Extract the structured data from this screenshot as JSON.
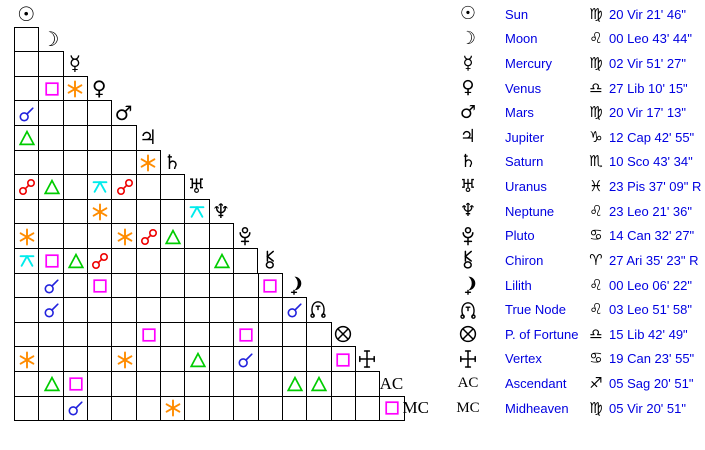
{
  "colors": {
    "text_blue": "#0000e0",
    "glyph_black": "#000000",
    "grid_line": "#000000",
    "aspect": {
      "conjunction": "#2222dd",
      "sextile": "#ff8c00",
      "square": "#ff00ff",
      "trine": "#00cc00",
      "opposition": "#ee0000",
      "quincunx": "#00ebeb"
    }
  },
  "planets": [
    {
      "id": "sun",
      "name": "Sun",
      "sign": "virgo",
      "position": "20 Vir 21' 46\""
    },
    {
      "id": "moon",
      "name": "Moon",
      "sign": "leo",
      "position": "00 Leo 43' 44\""
    },
    {
      "id": "mercury",
      "name": "Mercury",
      "sign": "virgo",
      "position": "02 Vir 51' 27\""
    },
    {
      "id": "venus",
      "name": "Venus",
      "sign": "libra",
      "position": "27 Lib 10' 15\""
    },
    {
      "id": "mars",
      "name": "Mars",
      "sign": "virgo",
      "position": "20 Vir 17' 13\""
    },
    {
      "id": "jupiter",
      "name": "Jupiter",
      "sign": "capricorn",
      "position": "12 Cap 42' 55\""
    },
    {
      "id": "saturn",
      "name": "Saturn",
      "sign": "scorpio",
      "position": "10 Sco 43' 34\""
    },
    {
      "id": "uranus",
      "name": "Uranus",
      "sign": "pisces",
      "position": "23 Pis 37' 09\" R"
    },
    {
      "id": "neptune",
      "name": "Neptune",
      "sign": "leo",
      "position": "23 Leo 21' 36\""
    },
    {
      "id": "pluto",
      "name": "Pluto",
      "sign": "cancer",
      "position": "14 Can 32' 27\""
    },
    {
      "id": "chiron",
      "name": "Chiron",
      "sign": "aries",
      "position": "27 Ari 35' 23\" R"
    },
    {
      "id": "lilith",
      "name": "Lilith",
      "sign": "leo",
      "position": "00 Leo 06' 22\""
    },
    {
      "id": "truenode",
      "name": "True Node",
      "sign": "leo",
      "position": "03 Leo 51' 58\""
    },
    {
      "id": "pof",
      "name": "P. of Fortune",
      "sign": "libra",
      "position": "15 Lib 42' 49\""
    },
    {
      "id": "vertex",
      "name": "Vertex",
      "sign": "cancer",
      "position": "19 Can 23' 55\""
    },
    {
      "id": "ac",
      "name": "Ascendant",
      "sign": "sagittarius",
      "position": "05 Sag 20' 51\"",
      "label": "AC"
    },
    {
      "id": "mc",
      "name": "Midheaven",
      "sign": "virgo",
      "position": "05 Vir 20' 51\"",
      "label": "MC"
    }
  ],
  "aspect_grid": {
    "rows": 17,
    "aspects": [
      {
        "row": 4,
        "col": 2,
        "type": "square"
      },
      {
        "row": 4,
        "col": 3,
        "type": "sextile"
      },
      {
        "row": 5,
        "col": 1,
        "type": "conjunction"
      },
      {
        "row": 6,
        "col": 1,
        "type": "trine"
      },
      {
        "row": 7,
        "col": 6,
        "type": "sextile"
      },
      {
        "row": 8,
        "col": 1,
        "type": "opposition"
      },
      {
        "row": 8,
        "col": 2,
        "type": "trine"
      },
      {
        "row": 8,
        "col": 4,
        "type": "quincunx"
      },
      {
        "row": 8,
        "col": 5,
        "type": "opposition"
      },
      {
        "row": 9,
        "col": 4,
        "type": "sextile"
      },
      {
        "row": 9,
        "col": 8,
        "type": "quincunx"
      },
      {
        "row": 10,
        "col": 1,
        "type": "sextile"
      },
      {
        "row": 10,
        "col": 5,
        "type": "sextile"
      },
      {
        "row": 10,
        "col": 6,
        "type": "opposition"
      },
      {
        "row": 10,
        "col": 7,
        "type": "trine"
      },
      {
        "row": 11,
        "col": 1,
        "type": "quincunx"
      },
      {
        "row": 11,
        "col": 2,
        "type": "square"
      },
      {
        "row": 11,
        "col": 3,
        "type": "trine"
      },
      {
        "row": 11,
        "col": 4,
        "type": "opposition"
      },
      {
        "row": 11,
        "col": 9,
        "type": "trine"
      },
      {
        "row": 12,
        "col": 2,
        "type": "conjunction"
      },
      {
        "row": 12,
        "col": 4,
        "type": "square"
      },
      {
        "row": 12,
        "col": 11,
        "type": "square"
      },
      {
        "row": 13,
        "col": 2,
        "type": "conjunction"
      },
      {
        "row": 13,
        "col": 12,
        "type": "conjunction"
      },
      {
        "row": 14,
        "col": 6,
        "type": "square"
      },
      {
        "row": 14,
        "col": 10,
        "type": "square"
      },
      {
        "row": 15,
        "col": 1,
        "type": "sextile"
      },
      {
        "row": 15,
        "col": 5,
        "type": "sextile"
      },
      {
        "row": 15,
        "col": 8,
        "type": "trine"
      },
      {
        "row": 15,
        "col": 10,
        "type": "conjunction"
      },
      {
        "row": 15,
        "col": 14,
        "type": "square"
      },
      {
        "row": 16,
        "col": 2,
        "type": "trine"
      },
      {
        "row": 16,
        "col": 3,
        "type": "square"
      },
      {
        "row": 16,
        "col": 12,
        "type": "trine"
      },
      {
        "row": 16,
        "col": 13,
        "type": "trine"
      },
      {
        "row": 17,
        "col": 3,
        "type": "conjunction"
      },
      {
        "row": 17,
        "col": 7,
        "type": "sextile"
      },
      {
        "row": 17,
        "col": 16,
        "type": "square"
      }
    ]
  }
}
